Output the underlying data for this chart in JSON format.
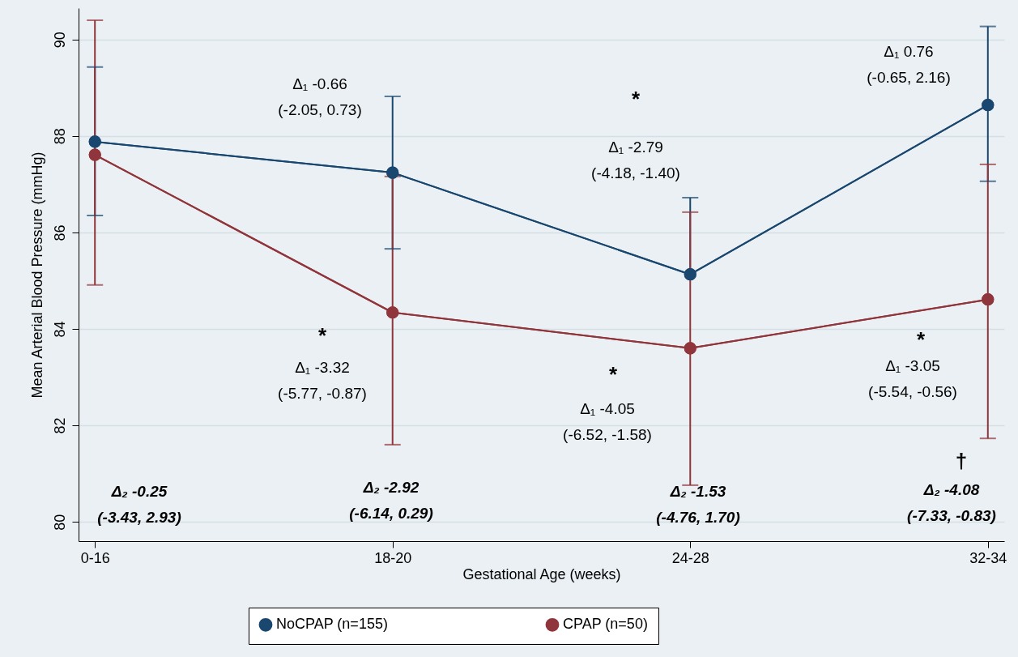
{
  "chart_data": {
    "type": "line",
    "xlabel": "Gestational Age (weeks)",
    "ylabel": "Mean Arterial Blood Pressure (mmHg)",
    "categories": [
      "0-16",
      "18-20",
      "24-28",
      "32-34"
    ],
    "series": [
      {
        "name": "NoCPAP (n=155)",
        "color": "#1a476f",
        "values": [
          87.88,
          87.24,
          85.13,
          88.64
        ],
        "errors": [
          [
            86.35,
            89.43
          ],
          [
            85.66,
            88.82
          ],
          [
            85.13,
            86.72
          ],
          [
            87.06,
            90.27
          ]
        ]
      },
      {
        "name": "CPAP (n=50)",
        "color": "#90353b",
        "values": [
          87.61,
          84.34,
          83.6,
          84.61
        ],
        "errors": [
          [
            84.91,
            90.4
          ],
          [
            81.6,
            87.16
          ],
          [
            80.76,
            86.42
          ],
          [
            81.73,
            87.41
          ]
        ]
      }
    ],
    "ylim": [
      79.6,
      90.65
    ],
    "yticks": [
      80,
      82,
      84,
      86,
      88,
      90
    ],
    "grid": "y",
    "legend": "bottom",
    "marker": "circle",
    "line_style": "solid",
    "annotations": [
      "*",
      "Δ₁ -2.79\n(-4.18, -1.40)",
      "Δ₁ -0.66\n(-2.05, 0.73)",
      "Δ₁ 0.76\n(-0.65, 2.16)",
      "*",
      "Δ₁ -3.32\n(-5.77, -0.87)",
      "*",
      "Δ₁ -4.05\n(-6.52, -1.58)",
      "*",
      "Δ₁ -3.05\n(-5.54, -0.56)",
      "†",
      "Δ₂ -0.25\n(-3.43, 2.93)",
      "Δ₂ -2.92\n(-6.14, 0.29)",
      "Δ₂ -1.53\n(-4.76, 1.70)",
      "Δ₂ -4.08\n(-7.33, -0.83)"
    ]
  }
}
